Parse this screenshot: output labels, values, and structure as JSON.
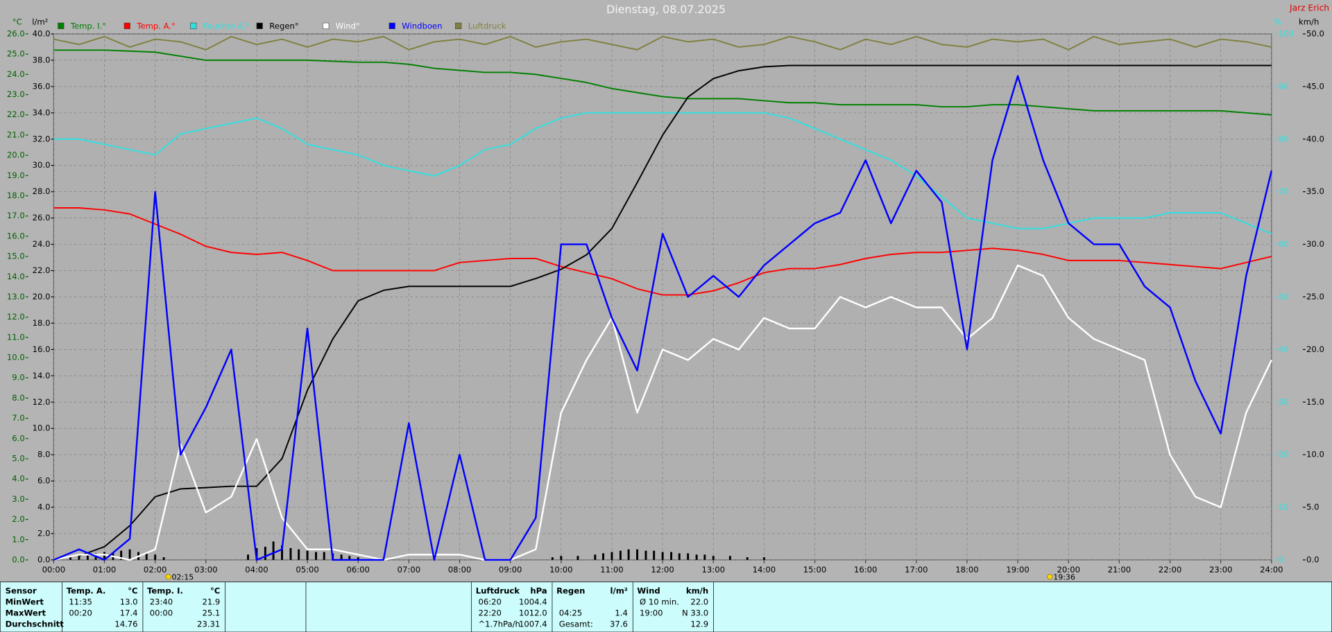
{
  "chart_data": {
    "type": "line",
    "title": "Dienstag, 08.07.2025",
    "author": "Jarz Erich",
    "y_unit": "°C",
    "y2_unit": "l/m²",
    "y3_unit": "%",
    "y4_unit": "km/h",
    "grid": true,
    "x": [
      0,
      0.5,
      1,
      1.5,
      2,
      2.5,
      3,
      3.5,
      4,
      4.5,
      5,
      5.5,
      6,
      6.5,
      7,
      7.5,
      8,
      8.5,
      9,
      9.5,
      10,
      10.5,
      11,
      11.5,
      12,
      12.5,
      13,
      13.5,
      14,
      14.5,
      15,
      15.5,
      16,
      16.5,
      17,
      17.5,
      18,
      18.5,
      19,
      19.5,
      20,
      20.5,
      21,
      21.5,
      22,
      22.5,
      23,
      23.5,
      24
    ],
    "xlim": [
      0,
      24
    ],
    "xticks": [
      {
        "value": 0,
        "label": "00:00"
      },
      {
        "value": 1,
        "label": "01:00"
      },
      {
        "value": 2,
        "label": "02:00"
      },
      {
        "value": 3,
        "label": "03:00"
      },
      {
        "value": 4,
        "label": "04:00"
      },
      {
        "value": 5,
        "label": "05:00"
      },
      {
        "value": 6,
        "label": "06:00"
      },
      {
        "value": 7,
        "label": "07:00"
      },
      {
        "value": 8,
        "label": "08:00"
      },
      {
        "value": 9,
        "label": "09:00"
      },
      {
        "value": 10,
        "label": "10:00"
      },
      {
        "value": 11,
        "label": "11:00"
      },
      {
        "value": 12,
        "label": "12:00"
      },
      {
        "value": 13,
        "label": "13:00"
      },
      {
        "value": 14,
        "label": "14:00"
      },
      {
        "value": 15,
        "label": "15:00"
      },
      {
        "value": 16,
        "label": "16:00"
      },
      {
        "value": 17,
        "label": "17:00"
      },
      {
        "value": 18,
        "label": "18:00"
      },
      {
        "value": 19,
        "label": "19:00"
      },
      {
        "value": 20,
        "label": "20:00"
      },
      {
        "value": 21,
        "label": "21:00"
      },
      {
        "value": 22,
        "label": "22:00"
      },
      {
        "value": 23,
        "label": "23:00"
      },
      {
        "value": 24,
        "label": "24:00"
      }
    ],
    "ylim": [
      0,
      26
    ],
    "yticks": [
      {
        "value": 0,
        "label": "0.0"
      },
      {
        "value": 1,
        "label": "1.0"
      },
      {
        "value": 2,
        "label": "2.0"
      },
      {
        "value": 3,
        "label": "3.0"
      },
      {
        "value": 4,
        "label": "4.0"
      },
      {
        "value": 5,
        "label": "5.0"
      },
      {
        "value": 6,
        "label": "6.0"
      },
      {
        "value": 7,
        "label": "7.0"
      },
      {
        "value": 8,
        "label": "8.0"
      },
      {
        "value": 9,
        "label": "9.0"
      },
      {
        "value": 10,
        "label": "10.0"
      },
      {
        "value": 11,
        "label": "11.0"
      },
      {
        "value": 12,
        "label": "12.0"
      },
      {
        "value": 13,
        "label": "13.0"
      },
      {
        "value": 14,
        "label": "14.0"
      },
      {
        "value": 15,
        "label": "15.0"
      },
      {
        "value": 16,
        "label": "16.0"
      },
      {
        "value": 17,
        "label": "17.0"
      },
      {
        "value": 18,
        "label": "18.0"
      },
      {
        "value": 19,
        "label": "19.0"
      },
      {
        "value": 20,
        "label": "20.0"
      },
      {
        "value": 21,
        "label": "21.0"
      },
      {
        "value": 22,
        "label": "22.0"
      },
      {
        "value": 23,
        "label": "23.0"
      },
      {
        "value": 24,
        "label": "24.0"
      },
      {
        "value": 25,
        "label": "25.0"
      },
      {
        "value": 26,
        "label": "26.0"
      }
    ],
    "y2lim": [
      0,
      40
    ],
    "y2ticks": [
      {
        "value": 0,
        "label": "0.0"
      },
      {
        "value": 2,
        "label": "2.0"
      },
      {
        "value": 4,
        "label": "4.0"
      },
      {
        "value": 6,
        "label": "6.0"
      },
      {
        "value": 8,
        "label": "8.0"
      },
      {
        "value": 10,
        "label": "10.0"
      },
      {
        "value": 12,
        "label": "12.0"
      },
      {
        "value": 14,
        "label": "14.0"
      },
      {
        "value": 16,
        "label": "16.0"
      },
      {
        "value": 18,
        "label": "18.0"
      },
      {
        "value": 20,
        "label": "20.0"
      },
      {
        "value": 22,
        "label": "22.0"
      },
      {
        "value": 24,
        "label": "24.0"
      },
      {
        "value": 26,
        "label": "26.0"
      },
      {
        "value": 28,
        "label": "28.0"
      },
      {
        "value": 30,
        "label": "30.0"
      },
      {
        "value": 32,
        "label": "32.0"
      },
      {
        "value": 34,
        "label": "34.0"
      },
      {
        "value": 36,
        "label": "36.0"
      },
      {
        "value": 38,
        "label": "38.0"
      },
      {
        "value": 40,
        "label": "40.0"
      }
    ],
    "y3lim": [
      0,
      100
    ],
    "y3ticks": [
      0,
      10,
      20,
      30,
      40,
      50,
      60,
      70,
      80,
      90,
      100
    ],
    "y4lim": [
      0,
      50
    ],
    "y4ticks": [
      {
        "value": 0,
        "label": "0.0"
      },
      {
        "value": 5,
        "label": "5.0"
      },
      {
        "value": 10,
        "label": "10.0"
      },
      {
        "value": 15,
        "label": "15.0"
      },
      {
        "value": 20,
        "label": "20.0"
      },
      {
        "value": 25,
        "label": "25.0"
      },
      {
        "value": 30,
        "label": "30.0"
      },
      {
        "value": 35,
        "label": "35.0"
      },
      {
        "value": 40,
        "label": "40.0"
      },
      {
        "value": 45,
        "label": "45.0"
      },
      {
        "value": 50,
        "label": "50.0"
      }
    ],
    "series": [
      {
        "name": "Temp. I.°",
        "color": "#008000",
        "axis": "y",
        "values": [
          25.2,
          25.2,
          25.2,
          25.15,
          25.1,
          24.9,
          24.7,
          24.7,
          24.7,
          24.7,
          24.7,
          24.65,
          24.6,
          24.6,
          24.5,
          24.3,
          24.2,
          24.1,
          24.1,
          24.0,
          23.8,
          23.6,
          23.3,
          23.1,
          22.9,
          22.8,
          22.8,
          22.8,
          22.7,
          22.6,
          22.6,
          22.5,
          22.5,
          22.5,
          22.5,
          22.4,
          22.4,
          22.5,
          22.5,
          22.4,
          22.3,
          22.2,
          22.2,
          22.2,
          22.2,
          22.2,
          22.2,
          22.1,
          22.0
        ]
      },
      {
        "name": "Temp. A.°",
        "color": "#ff0000",
        "axis": "y",
        "values": [
          17.4,
          17.4,
          17.3,
          17.1,
          16.6,
          16.1,
          15.5,
          15.2,
          15.1,
          15.2,
          14.8,
          14.3,
          14.3,
          14.3,
          14.3,
          14.3,
          14.7,
          14.8,
          14.9,
          14.9,
          14.5,
          14.2,
          13.9,
          13.4,
          13.1,
          13.1,
          13.3,
          13.7,
          14.2,
          14.4,
          14.4,
          14.6,
          14.9,
          15.1,
          15.2,
          15.2,
          15.3,
          15.4,
          15.3,
          15.1,
          14.8,
          14.8,
          14.8,
          14.7,
          14.6,
          14.5,
          14.4,
          14.7,
          15.0
        ]
      },
      {
        "name": "Feuchte A.°",
        "color": "#30e0e0",
        "axis": "y3",
        "values": [
          80,
          80,
          79,
          78,
          77,
          81,
          82,
          83,
          84,
          82,
          79,
          78,
          77,
          75,
          74,
          73,
          75,
          78,
          79,
          82,
          84,
          85,
          85,
          85,
          85,
          85,
          85,
          85,
          85,
          84,
          82,
          80,
          78,
          76,
          73,
          69,
          65,
          64,
          63,
          63,
          64,
          65,
          65,
          65,
          66,
          66,
          66,
          64,
          62
        ]
      },
      {
        "name": "Regen°",
        "color": "#000000",
        "axis": "y2",
        "values": [
          null,
          0.3,
          1.0,
          2.6,
          4.8,
          5.4,
          5.5,
          5.6,
          5.6,
          7.7,
          12.9,
          16.8,
          19.7,
          20.5,
          20.8,
          20.8,
          20.8,
          20.8,
          20.8,
          21.4,
          22.1,
          23.2,
          25.2,
          28.7,
          32.3,
          35.2,
          36.6,
          37.2,
          37.5,
          37.6,
          37.6,
          37.6,
          37.6,
          37.6,
          37.6,
          37.6,
          37.6,
          37.6,
          37.6,
          37.6,
          37.6,
          37.6,
          37.6,
          37.6,
          37.6,
          37.6,
          37.6,
          37.6,
          37.6
        ]
      },
      {
        "name": "Wind°",
        "color": "#ffffff",
        "axis": "y4",
        "values": [
          0,
          0.5,
          0.5,
          0,
          1,
          11,
          4.5,
          6,
          11.5,
          4,
          1,
          1,
          0.5,
          0,
          0.5,
          0.5,
          0.5,
          0,
          0,
          1,
          14,
          19,
          23,
          14,
          20,
          19,
          21,
          20,
          23,
          22,
          22,
          25,
          24,
          25,
          24,
          24,
          21,
          23,
          28,
          27,
          23,
          21,
          20,
          19,
          10,
          6,
          5,
          14,
          19
        ]
      },
      {
        "name": "Windboen",
        "color": "#0000ff",
        "axis": "y4",
        "values": [
          0,
          1,
          0,
          2,
          35,
          10,
          14.5,
          20,
          0,
          1,
          22,
          0,
          0,
          0,
          13,
          0,
          10,
          0,
          0,
          4,
          30,
          30,
          23,
          18,
          31,
          25,
          27,
          25,
          28,
          30,
          32,
          33,
          38,
          32,
          37,
          34,
          20,
          38,
          46,
          38,
          32,
          30,
          30,
          26,
          24,
          17,
          12,
          27,
          37
        ]
      },
      {
        "name": "Luftdruck",
        "color": "#808040",
        "axis": "y3",
        "values": [
          99,
          98,
          99.5,
          97.5,
          99,
          98.5,
          97,
          99.5,
          98,
          99,
          97.5,
          99,
          98.5,
          99.5,
          97,
          98.5,
          99,
          98,
          99.5,
          97.5,
          98.5,
          99,
          98,
          97,
          99.5,
          98.5,
          99,
          97.5,
          98,
          99.5,
          98.5,
          97,
          99,
          98,
          99.5,
          98,
          97.5,
          99,
          98.5,
          99,
          97,
          99.5,
          98,
          98.5,
          99,
          97.5,
          99,
          98.5,
          97.5
        ]
      }
    ],
    "rain_bars": {
      "color": "#000000",
      "axis": "y2",
      "x": [
        0.33,
        0.5,
        0.67,
        0.83,
        1.0,
        1.17,
        1.33,
        1.5,
        1.67,
        1.83,
        2.0,
        2.17,
        3.83,
        4.0,
        4.17,
        4.33,
        4.5,
        4.67,
        4.83,
        5.0,
        5.17,
        5.33,
        5.5,
        5.67,
        5.83,
        6.0,
        9.83,
        10.0,
        10.33,
        10.67,
        10.83,
        11.0,
        11.17,
        11.33,
        11.5,
        11.67,
        11.83,
        12.0,
        12.17,
        12.33,
        12.5,
        12.67,
        12.83,
        13.0,
        13.33,
        13.67,
        14.0
      ],
      "values": [
        0.2,
        0.3,
        0.4,
        0.5,
        0.6,
        0.5,
        0.7,
        0.8,
        0.6,
        0.5,
        0.4,
        0.2,
        0.4,
        0.9,
        1.0,
        1.4,
        1.1,
        0.9,
        0.8,
        0.7,
        0.6,
        0.6,
        0.5,
        0.4,
        0.3,
        0.2,
        0.2,
        0.3,
        0.3,
        0.4,
        0.5,
        0.6,
        0.7,
        0.8,
        0.8,
        0.7,
        0.7,
        0.6,
        0.6,
        0.5,
        0.5,
        0.4,
        0.4,
        0.3,
        0.3,
        0.2,
        0.2
      ]
    },
    "sun_events": [
      "02:15",
      "19:36"
    ]
  },
  "stats": {
    "row_labels": [
      "Sensor",
      "MinWert",
      "MaxWert",
      "Durchschnitt"
    ],
    "groups": [
      {
        "name": "Temp. A.",
        "unit": "°C",
        "rows": [
          [
            "11:35",
            "13.0"
          ],
          [
            "00:20",
            "17.4"
          ],
          [
            null,
            "14.76"
          ]
        ]
      },
      {
        "name": "Temp. I.",
        "unit": "°C",
        "rows": [
          [
            "23:40",
            "21.9"
          ],
          [
            "00:00",
            "25.1"
          ],
          [
            null,
            "23.31"
          ]
        ]
      },
      {
        "name": "Luftdruck",
        "unit": "hPa",
        "rows": [
          [
            "06:20",
            "1004.4"
          ],
          [
            "22:20",
            "1012.0"
          ],
          [
            "^1.7hPa/h",
            "1007.4"
          ]
        ]
      },
      {
        "name": "Regen",
        "unit": "l/m²",
        "rows": [
          [
            null,
            null
          ],
          [
            "04:25",
            "1.4"
          ],
          [
            "Gesamt:",
            "37.6"
          ]
        ]
      },
      {
        "name": "Wind",
        "unit": "km/h",
        "rows": [
          [
            "Ø 10 min.",
            "22.0"
          ],
          [
            "19:00",
            "N 33.0"
          ],
          [
            null,
            "12.9"
          ]
        ]
      }
    ]
  }
}
